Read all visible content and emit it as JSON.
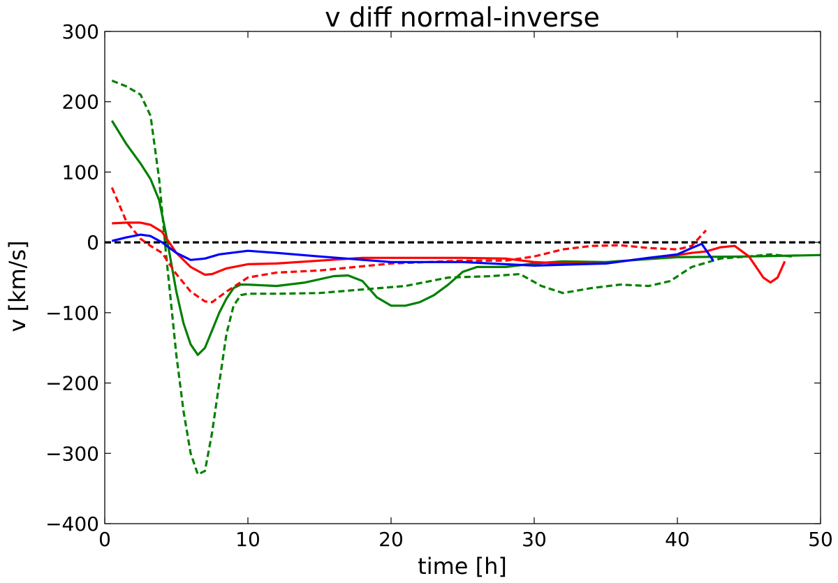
{
  "chart_data": {
    "type": "line",
    "title": "v diff normal-inverse",
    "xlabel": "time [h]",
    "ylabel": "v [km/s]",
    "xlim": [
      0,
      50
    ],
    "ylim": [
      -400,
      300
    ],
    "xticks": [
      0,
      10,
      20,
      30,
      40,
      50
    ],
    "yticks": [
      -400,
      -300,
      -200,
      -100,
      0,
      100,
      200,
      300
    ],
    "xtick_labels": [
      "0",
      "10",
      "20",
      "30",
      "40",
      "50"
    ],
    "ytick_labels": [
      "−400",
      "−300",
      "−200",
      "−100",
      "0",
      "100",
      "200",
      "300"
    ],
    "grid": false,
    "series": [
      {
        "name": "zero reference",
        "color": "#000000",
        "dash": "dashed",
        "x": [
          0,
          50
        ],
        "y": [
          0,
          0
        ]
      },
      {
        "name": "green dashed",
        "color": "#008000",
        "dash": "dashed",
        "x": [
          0.5,
          1.5,
          2.5,
          3.2,
          3.8,
          4.3,
          5,
          5.5,
          6,
          6.5,
          7,
          7.5,
          8,
          8.5,
          9,
          9.5,
          10,
          12,
          15,
          18,
          21,
          24,
          27,
          29,
          30.5,
          32,
          34,
          36,
          38,
          39.5,
          41,
          43,
          45,
          46.5,
          48
        ],
        "y": [
          230,
          222,
          210,
          180,
          90,
          -20,
          -160,
          -240,
          -300,
          -330,
          -325,
          -270,
          -200,
          -130,
          -90,
          -75,
          -73,
          -73,
          -72,
          -67,
          -62,
          -50,
          -48,
          -45,
          -62,
          -72,
          -65,
          -60,
          -62,
          -55,
          -35,
          -23,
          -20,
          -17,
          -20
        ]
      },
      {
        "name": "green solid",
        "color": "#008000",
        "dash": "solid",
        "x": [
          0.5,
          1.5,
          2.5,
          3.2,
          3.8,
          4.3,
          5,
          5.5,
          6,
          6.5,
          7,
          7.5,
          8,
          8.5,
          9,
          9.5,
          10,
          12,
          14,
          16,
          17,
          18,
          19,
          20,
          21,
          22,
          23,
          24,
          25,
          26,
          28,
          30,
          32,
          35,
          40,
          45,
          50
        ],
        "y": [
          173,
          140,
          112,
          90,
          60,
          10,
          -70,
          -115,
          -145,
          -160,
          -150,
          -125,
          -100,
          -80,
          -65,
          -60,
          -60,
          -62,
          -57,
          -48,
          -47,
          -55,
          -78,
          -90,
          -90,
          -85,
          -75,
          -60,
          -42,
          -35,
          -35,
          -30,
          -27,
          -28,
          -21,
          -20,
          -18
        ]
      },
      {
        "name": "red dashed",
        "color": "#ff0000",
        "dash": "dashed",
        "x": [
          0.5,
          1.5,
          2.5,
          3.2,
          4,
          5,
          6,
          7,
          7.5,
          8.5,
          10,
          12,
          15,
          20,
          25,
          28,
          30,
          32,
          34,
          36,
          38,
          40,
          41,
          42
        ],
        "y": [
          78,
          30,
          5,
          -5,
          -15,
          -45,
          -70,
          -84,
          -85,
          -70,
          -50,
          -43,
          -40,
          -30,
          -26,
          -26,
          -20,
          -10,
          -5,
          -4,
          -8,
          -10,
          -5,
          17
        ]
      },
      {
        "name": "red solid",
        "color": "#ff0000",
        "dash": "solid",
        "x": [
          0.5,
          1.5,
          2.5,
          3.2,
          4,
          5,
          6,
          7,
          7.5,
          8.5,
          10,
          12,
          15,
          18,
          22,
          25,
          28,
          30,
          32,
          35,
          38,
          40,
          41,
          42,
          43,
          44,
          45,
          45.5,
          46,
          46.5,
          47,
          47.5
        ],
        "y": [
          27,
          28,
          28,
          25,
          15,
          -15,
          -35,
          -46,
          -45,
          -37,
          -31,
          -30,
          -26,
          -22,
          -22,
          -22,
          -23,
          -28,
          -30,
          -30,
          -22,
          -18,
          -15,
          -13,
          -7,
          -5,
          -20,
          -35,
          -50,
          -57,
          -50,
          -27
        ]
      },
      {
        "name": "blue solid",
        "color": "#0000ff",
        "dash": "solid",
        "x": [
          0.5,
          1.5,
          2.5,
          3.2,
          4,
          5,
          6,
          7,
          8,
          10,
          12,
          15,
          20,
          25,
          30,
          35,
          38,
          40,
          41,
          41.7,
          42.5
        ],
        "y": [
          2,
          7,
          11,
          9,
          0,
          -15,
          -25,
          -23,
          -17,
          -12,
          -15,
          -20,
          -28,
          -28,
          -33,
          -30,
          -22,
          -17,
          -8,
          -2,
          -26
        ]
      }
    ]
  }
}
